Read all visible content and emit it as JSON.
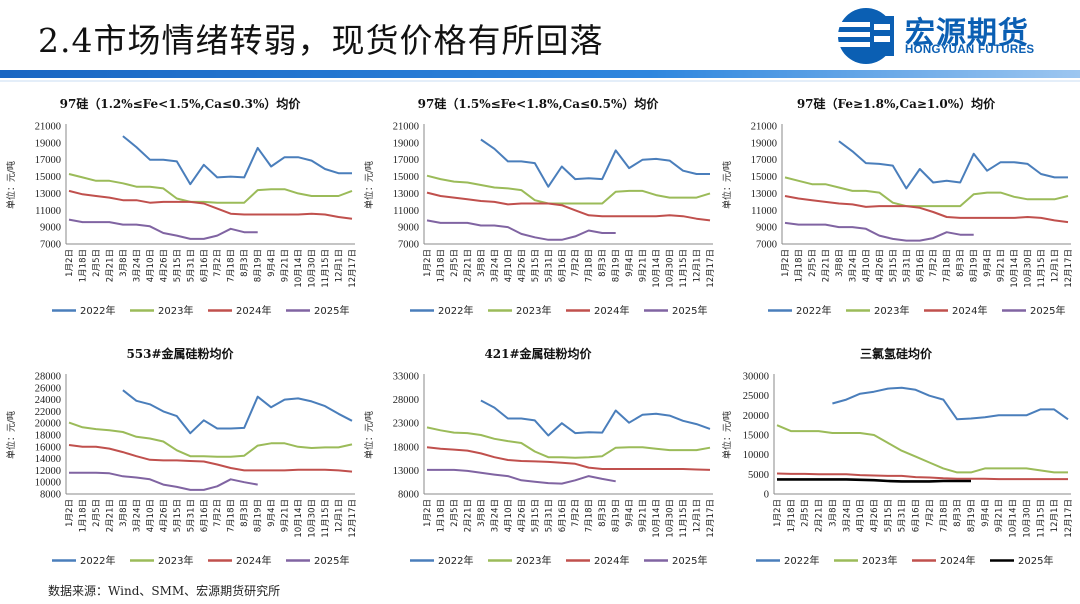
{
  "header": {
    "title": "2.4市场情绪转弱，现货价格有所回落",
    "logo_cn": "宏源期货",
    "logo_en": "HONGYUAN FUTURES",
    "accent_color": "#1a66c2"
  },
  "source": "数据来源：Wind、SMM、宏源期货研究所",
  "colors": {
    "s2022": "#4a7ebb",
    "s2023": "#9bbb59",
    "s2024": "#c0504d",
    "s2025": "#8064a2",
    "s2025_alt": "#000000"
  },
  "x_categories": [
    "1月2日",
    "1月18日",
    "2月5日",
    "2月21日",
    "3月8日",
    "3月24日",
    "4月10日",
    "4月26日",
    "5月15日",
    "5月31日",
    "6月16日",
    "7月2日",
    "7月18日",
    "8月3日",
    "8月19日",
    "9月4日",
    "9月21日",
    "10月14日",
    "10月30日",
    "11月15日",
    "12月1日",
    "12月17日"
  ],
  "chart_data": [
    {
      "type": "line",
      "title": "97硅（1.2%≤Fe<1.5%,Ca≤0.3%）均价",
      "ylabel": "单位：元/吨",
      "ylim": [
        7000,
        21000
      ],
      "yticks": [
        7000,
        9000,
        11000,
        13000,
        15000,
        17000,
        19000,
        21000
      ],
      "series": [
        {
          "name": "2022年",
          "values": [
            null,
            null,
            null,
            null,
            19800,
            18500,
            17000,
            17000,
            16800,
            14100,
            16400,
            14900,
            15000,
            14900,
            18400,
            16200,
            17300,
            17300,
            16900,
            15900,
            15400,
            15400
          ]
        },
        {
          "name": "2023年",
          "values": [
            15300,
            14900,
            14500,
            14500,
            14200,
            13800,
            13800,
            13600,
            12400,
            12000,
            12000,
            11900,
            11900,
            11900,
            13400,
            13500,
            13500,
            13000,
            12700,
            12700,
            12700,
            13300
          ]
        },
        {
          "name": "2024年",
          "values": [
            13300,
            12900,
            12700,
            12500,
            12200,
            12200,
            11900,
            12000,
            12000,
            12000,
            11800,
            11200,
            10600,
            10500,
            10500,
            10500,
            10500,
            10500,
            10600,
            10500,
            10200,
            10000
          ]
        },
        {
          "name": "2025年",
          "values": [
            9900,
            9600,
            9600,
            9600,
            9300,
            9300,
            9100,
            8300,
            8000,
            7600,
            7600,
            8000,
            8800,
            8400,
            8400,
            null,
            null,
            null,
            null,
            null,
            null,
            null
          ]
        }
      ]
    },
    {
      "type": "line",
      "title": "97硅（1.5%≤Fe<1.8%,Ca≤0.5%）均价",
      "ylabel": "单位：元/吨",
      "ylim": [
        7000,
        21000
      ],
      "yticks": [
        7000,
        9000,
        11000,
        13000,
        15000,
        17000,
        19000,
        21000
      ],
      "series": [
        {
          "name": "2022年",
          "values": [
            null,
            null,
            null,
            null,
            19400,
            18300,
            16800,
            16800,
            16600,
            13800,
            16200,
            14700,
            14800,
            14700,
            18100,
            16000,
            17000,
            17100,
            16900,
            15700,
            15300,
            15300
          ]
        },
        {
          "name": "2023年",
          "values": [
            15100,
            14700,
            14400,
            14300,
            14000,
            13700,
            13600,
            13400,
            12200,
            11800,
            11800,
            11800,
            11800,
            11800,
            13200,
            13300,
            13300,
            12800,
            12500,
            12500,
            12500,
            13000
          ]
        },
        {
          "name": "2024年",
          "values": [
            13100,
            12700,
            12500,
            12300,
            12100,
            12000,
            11700,
            11800,
            11800,
            11800,
            11600,
            11000,
            10400,
            10300,
            10300,
            10300,
            10300,
            10300,
            10400,
            10300,
            10000,
            9800
          ]
        },
        {
          "name": "2025年",
          "values": [
            9800,
            9500,
            9500,
            9500,
            9200,
            9200,
            9000,
            8200,
            7800,
            7500,
            7500,
            7900,
            8600,
            8300,
            8300,
            null,
            null,
            null,
            null,
            null,
            null,
            null
          ]
        }
      ]
    },
    {
      "type": "line",
      "title": "97硅（Fe≥1.8%,Ca≥1.0%）均价",
      "ylabel": "单位：元/吨",
      "ylim": [
        7000,
        21000
      ],
      "yticks": [
        7000,
        9000,
        11000,
        13000,
        15000,
        17000,
        19000,
        21000
      ],
      "series": [
        {
          "name": "2022年",
          "values": [
            null,
            null,
            null,
            null,
            19200,
            18000,
            16600,
            16500,
            16300,
            13600,
            15900,
            14300,
            14500,
            14300,
            17700,
            15700,
            16700,
            16700,
            16500,
            15300,
            14900,
            14900
          ]
        },
        {
          "name": "2023年",
          "values": [
            14900,
            14500,
            14100,
            14100,
            13700,
            13300,
            13300,
            13100,
            11900,
            11500,
            11500,
            11500,
            11500,
            11500,
            12900,
            13100,
            13100,
            12600,
            12300,
            12300,
            12300,
            12700
          ]
        },
        {
          "name": "2024年",
          "values": [
            12700,
            12400,
            12200,
            12000,
            11800,
            11700,
            11400,
            11500,
            11500,
            11500,
            11300,
            10800,
            10200,
            10100,
            10100,
            10100,
            10100,
            10100,
            10200,
            10100,
            9800,
            9600
          ]
        },
        {
          "name": "2025年",
          "values": [
            9500,
            9300,
            9300,
            9300,
            9000,
            9000,
            8800,
            8000,
            7600,
            7400,
            7400,
            7700,
            8400,
            8100,
            8100,
            null,
            null,
            null,
            null,
            null,
            null,
            null
          ]
        }
      ]
    },
    {
      "type": "line",
      "title": "553#金属硅粉均价",
      "ylabel": "单位：元/吨",
      "ylim": [
        8000,
        28000
      ],
      "yticks": [
        8000,
        10000,
        12000,
        14000,
        16000,
        18000,
        20000,
        22000,
        24000,
        26000,
        28000
      ],
      "series": [
        {
          "name": "2022年",
          "values": [
            null,
            null,
            null,
            null,
            25600,
            23800,
            23200,
            22000,
            21200,
            18300,
            20500,
            19100,
            19100,
            19200,
            24500,
            22700,
            24000,
            24200,
            23700,
            22900,
            21600,
            20400
          ]
        },
        {
          "name": "2023年",
          "values": [
            20100,
            19300,
            19000,
            18800,
            18500,
            17700,
            17400,
            16900,
            15400,
            14400,
            14400,
            14300,
            14300,
            14500,
            16200,
            16600,
            16600,
            16000,
            15800,
            15900,
            15900,
            16400
          ]
        },
        {
          "name": "2024年",
          "values": [
            16300,
            16000,
            16000,
            15700,
            15100,
            14400,
            13800,
            13700,
            13700,
            13600,
            13500,
            13000,
            12400,
            12000,
            12000,
            12000,
            12000,
            12100,
            12100,
            12100,
            12000,
            11800
          ]
        },
        {
          "name": "2025年",
          "values": [
            11600,
            11600,
            11600,
            11500,
            11000,
            10800,
            10500,
            9600,
            9200,
            8700,
            8700,
            9300,
            10500,
            10000,
            9600,
            null,
            null,
            null,
            null,
            null,
            null,
            null
          ]
        }
      ]
    },
    {
      "type": "line",
      "title": "421#金属硅粉均价",
      "ylabel": "单位：元/吨",
      "ylim": [
        8000,
        33000
      ],
      "yticks": [
        8000,
        13000,
        18000,
        23000,
        28000,
        33000
      ],
      "series": [
        {
          "name": "2022年",
          "values": [
            null,
            null,
            null,
            null,
            27800,
            26300,
            24000,
            24000,
            23600,
            20400,
            23000,
            20900,
            21100,
            21000,
            25700,
            23100,
            24800,
            25000,
            24600,
            23500,
            22800,
            21800
          ]
        },
        {
          "name": "2023年",
          "values": [
            22100,
            21500,
            21000,
            20900,
            20500,
            19700,
            19200,
            18800,
            17000,
            15800,
            15800,
            15700,
            15800,
            16000,
            17800,
            17900,
            17900,
            17600,
            17300,
            17300,
            17300,
            17800
          ]
        },
        {
          "name": "2024年",
          "values": [
            17900,
            17600,
            17400,
            17200,
            16600,
            15800,
            15200,
            15000,
            14900,
            14800,
            14600,
            14400,
            13600,
            13300,
            13300,
            13300,
            13300,
            13300,
            13300,
            13300,
            13200,
            13100
          ]
        },
        {
          "name": "2025年",
          "values": [
            13100,
            13100,
            13100,
            12900,
            12500,
            12100,
            11800,
            10900,
            10600,
            10300,
            10200,
            10900,
            11800,
            11200,
            10700,
            null,
            null,
            null,
            null,
            null,
            null,
            null
          ]
        }
      ]
    },
    {
      "type": "line",
      "title": "三氯氢硅均价",
      "ylabel": "单位：元/吨",
      "ylim": [
        0,
        30000
      ],
      "yticks": [
        0,
        5000,
        10000,
        15000,
        20000,
        25000,
        30000
      ],
      "series": [
        {
          "name": "2022年",
          "values": [
            null,
            null,
            null,
            null,
            23000,
            24000,
            25500,
            26000,
            26800,
            27000,
            26500,
            25000,
            24000,
            19000,
            19200,
            19500,
            20000,
            20000,
            20000,
            21500,
            21500,
            19000
          ]
        },
        {
          "name": "2023年",
          "values": [
            17500,
            16000,
            16000,
            16000,
            15500,
            15500,
            15500,
            15000,
            13000,
            11000,
            9500,
            8000,
            6500,
            5500,
            5500,
            6500,
            6500,
            6500,
            6500,
            6000,
            5500,
            5500
          ]
        },
        {
          "name": "2024年",
          "values": [
            5200,
            5100,
            5100,
            5000,
            5000,
            5000,
            4800,
            4700,
            4600,
            4600,
            4300,
            4200,
            4000,
            3900,
            3900,
            3900,
            3800,
            3800,
            3800,
            3800,
            3800,
            3800
          ]
        },
        {
          "name": "2025年",
          "values": [
            3700,
            3700,
            3700,
            3700,
            3700,
            3700,
            3600,
            3500,
            3300,
            3200,
            3200,
            3200,
            3300,
            3300,
            3300,
            null,
            null,
            null,
            null,
            null,
            null,
            null
          ]
        }
      ]
    }
  ]
}
